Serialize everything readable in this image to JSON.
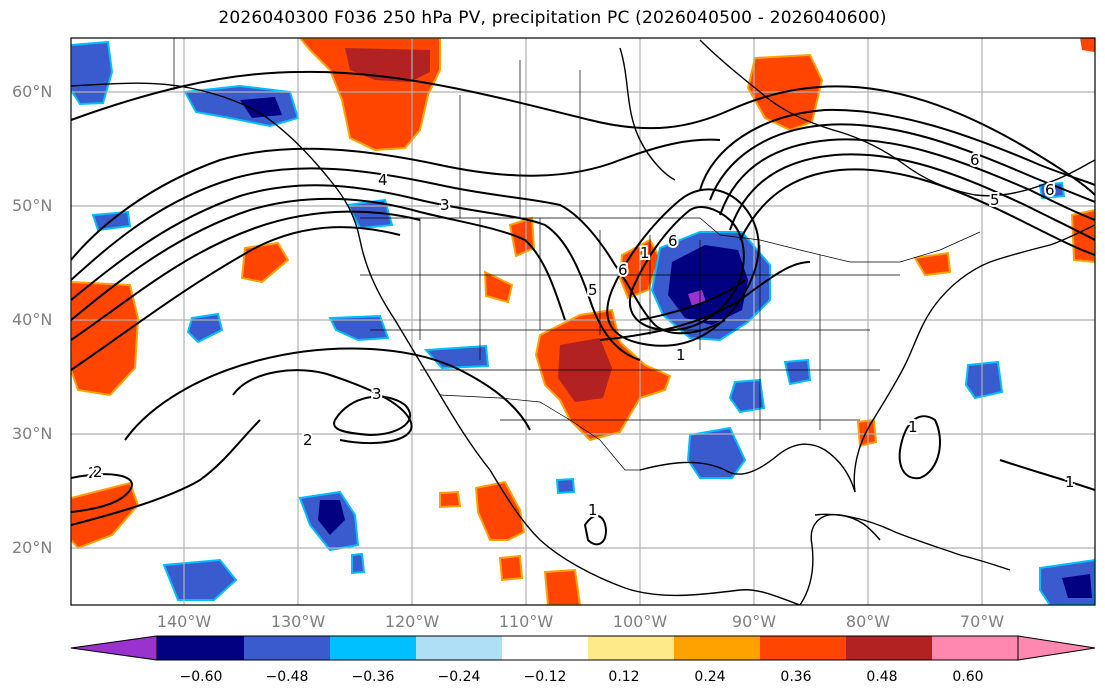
{
  "title": "2026040300 F036 250 hPa PV, precipitation PC (2026040500 - 2026040600)",
  "lat_labels": [
    "60°N",
    "50°N",
    "40°N",
    "30°N",
    "20°N"
  ],
  "lon_labels": [
    "140°W",
    "130°W",
    "120°W",
    "110°W",
    "100°W",
    "90°W",
    "80°W",
    "70°W"
  ],
  "contour_labels": [
    "4",
    "3",
    "2",
    "1",
    "3",
    "2",
    "5",
    "6",
    "6",
    "1",
    "1",
    "6",
    "5",
    "1",
    "2",
    "1",
    "6"
  ],
  "colorbar": {
    "colors": [
      "#9a32cd",
      "#000080",
      "#3a5bcd",
      "#00bfff",
      "#afdff7",
      "#ffffff",
      "#ffea8a",
      "#ffa200",
      "#ff4500",
      "#b22222",
      "#ff88b0"
    ],
    "tick_labels": [
      "−0.60",
      "−0.48",
      "−0.36",
      "−0.24",
      "−0.12",
      "0.12",
      "0.24",
      "0.36",
      "0.48",
      "0.60"
    ]
  },
  "colors": {
    "ocean": "#ffffff",
    "axis_label": "#808080",
    "contour": "#000000",
    "grid": "#b0b0b0"
  }
}
